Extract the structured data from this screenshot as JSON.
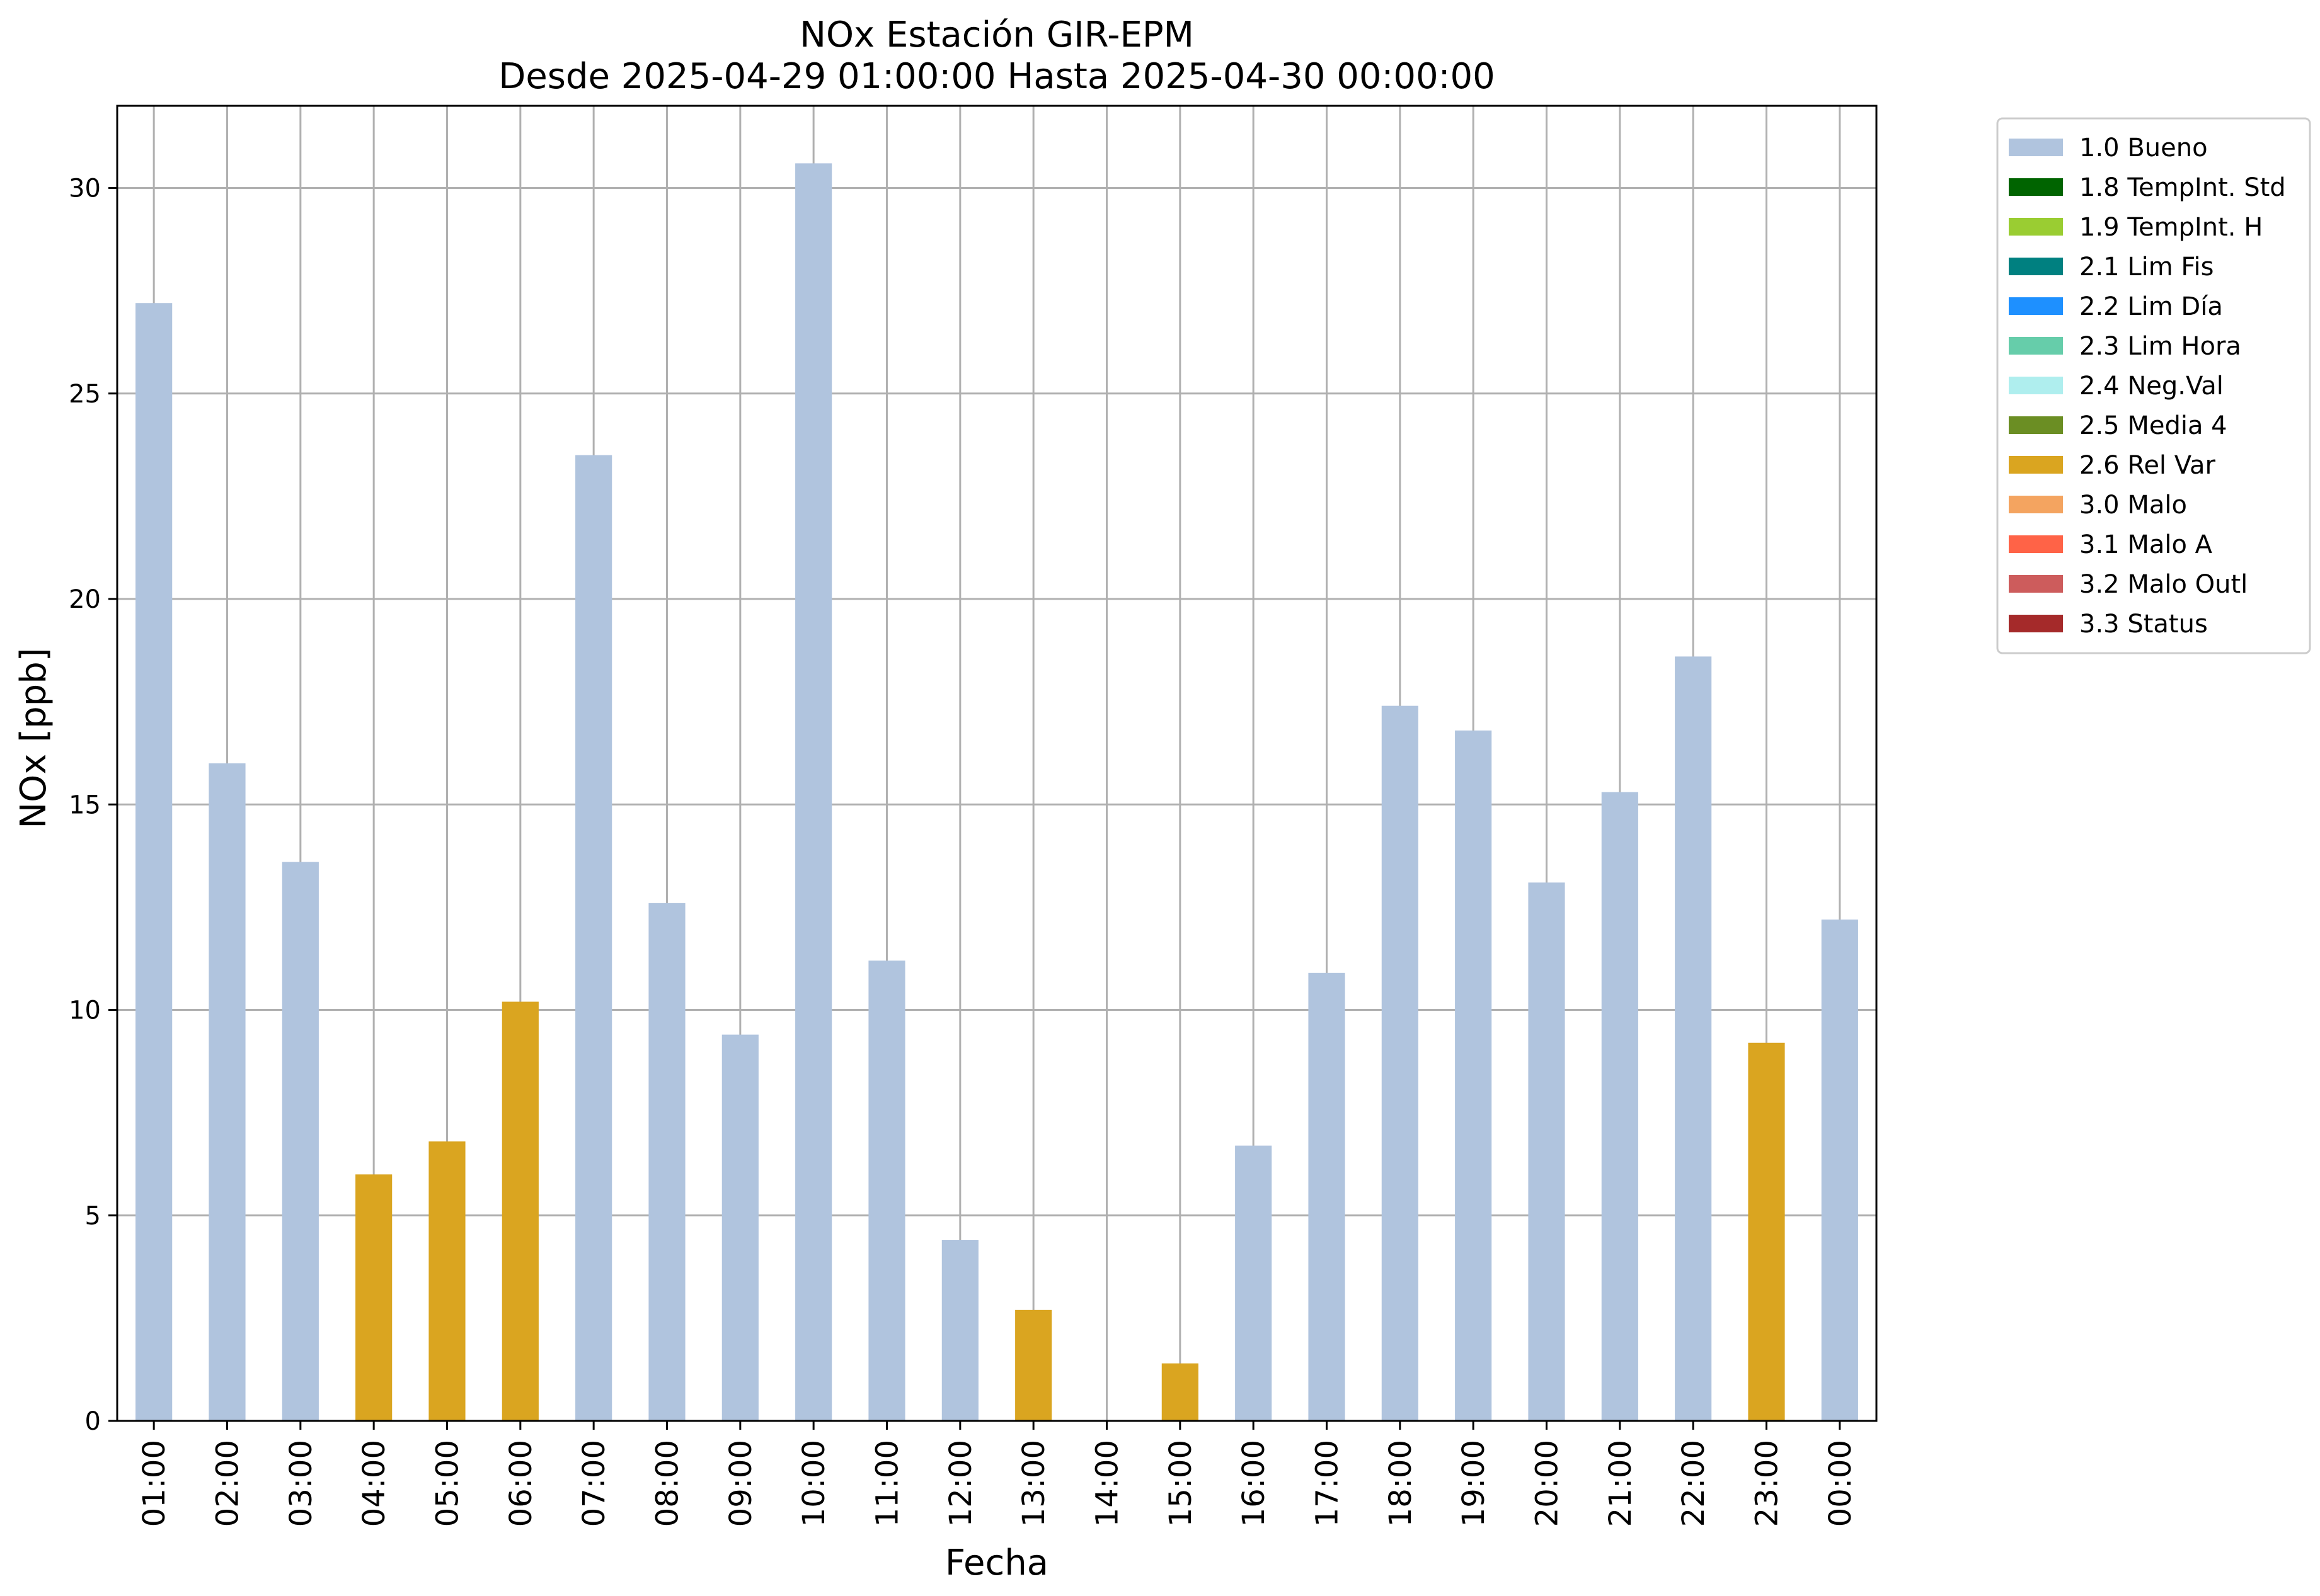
{
  "chart_data": {
    "type": "bar",
    "title": "NOx Estación GIR-EPM",
    "subtitle": "Desde 2025-04-29 01:00:00 Hasta 2025-04-30 00:00:00",
    "xlabel": "Fecha",
    "ylabel": "NOx [ppb]",
    "ylim": [
      0,
      32
    ],
    "yticks": [
      0,
      5,
      10,
      15,
      20,
      25,
      30
    ],
    "grid": true,
    "legend_position": "outside-top-right",
    "categories": [
      "01:00",
      "02:00",
      "03:00",
      "04:00",
      "05:00",
      "06:00",
      "07:00",
      "08:00",
      "09:00",
      "10:00",
      "11:00",
      "12:00",
      "13:00",
      "14:00",
      "15:00",
      "16:00",
      "17:00",
      "18:00",
      "19:00",
      "20:00",
      "21:00",
      "22:00",
      "23:00",
      "00:00"
    ],
    "values": [
      27.2,
      16.0,
      13.6,
      6.0,
      6.8,
      10.2,
      23.5,
      12.6,
      9.4,
      30.6,
      11.2,
      4.4,
      2.7,
      0,
      1.4,
      6.7,
      10.9,
      17.4,
      16.8,
      13.1,
      15.3,
      18.6,
      9.2,
      12.2
    ],
    "flags": [
      "1.0 Bueno",
      "1.0 Bueno",
      "1.0 Bueno",
      "2.6 Rel Var",
      "2.6 Rel Var",
      "2.6 Rel Var",
      "1.0 Bueno",
      "1.0 Bueno",
      "1.0 Bueno",
      "1.0 Bueno",
      "1.0 Bueno",
      "1.0 Bueno",
      "2.6 Rel Var",
      "1.0 Bueno",
      "2.6 Rel Var",
      "1.0 Bueno",
      "1.0 Bueno",
      "1.0 Bueno",
      "1.0 Bueno",
      "1.0 Bueno",
      "1.0 Bueno",
      "1.0 Bueno",
      "2.6 Rel Var",
      "1.0 Bueno"
    ],
    "legend": [
      {
        "label": "1.0 Bueno",
        "color": "#b0c4de"
      },
      {
        "label": "1.8 TempInt. Std",
        "color": "#006400"
      },
      {
        "label": "1.9 TempInt. H",
        "color": "#9acd32"
      },
      {
        "label": "2.1 Lim Fis",
        "color": "#008080"
      },
      {
        "label": "2.2 Lim Día",
        "color": "#1e90ff"
      },
      {
        "label": "2.3 Lim Hora",
        "color": "#66cdaa"
      },
      {
        "label": "2.4 Neg.Val",
        "color": "#afeeee"
      },
      {
        "label": "2.5 Media 4",
        "color": "#6b8e23"
      },
      {
        "label": "2.6 Rel Var",
        "color": "#daa520"
      },
      {
        "label": "3.0 Malo",
        "color": "#f4a460"
      },
      {
        "label": "3.1 Malo A",
        "color": "#ff6347"
      },
      {
        "label": "3.2 Malo Outl",
        "color": "#cd5c5c"
      },
      {
        "label": "3.3 Status",
        "color": "#a52a2a"
      }
    ]
  }
}
